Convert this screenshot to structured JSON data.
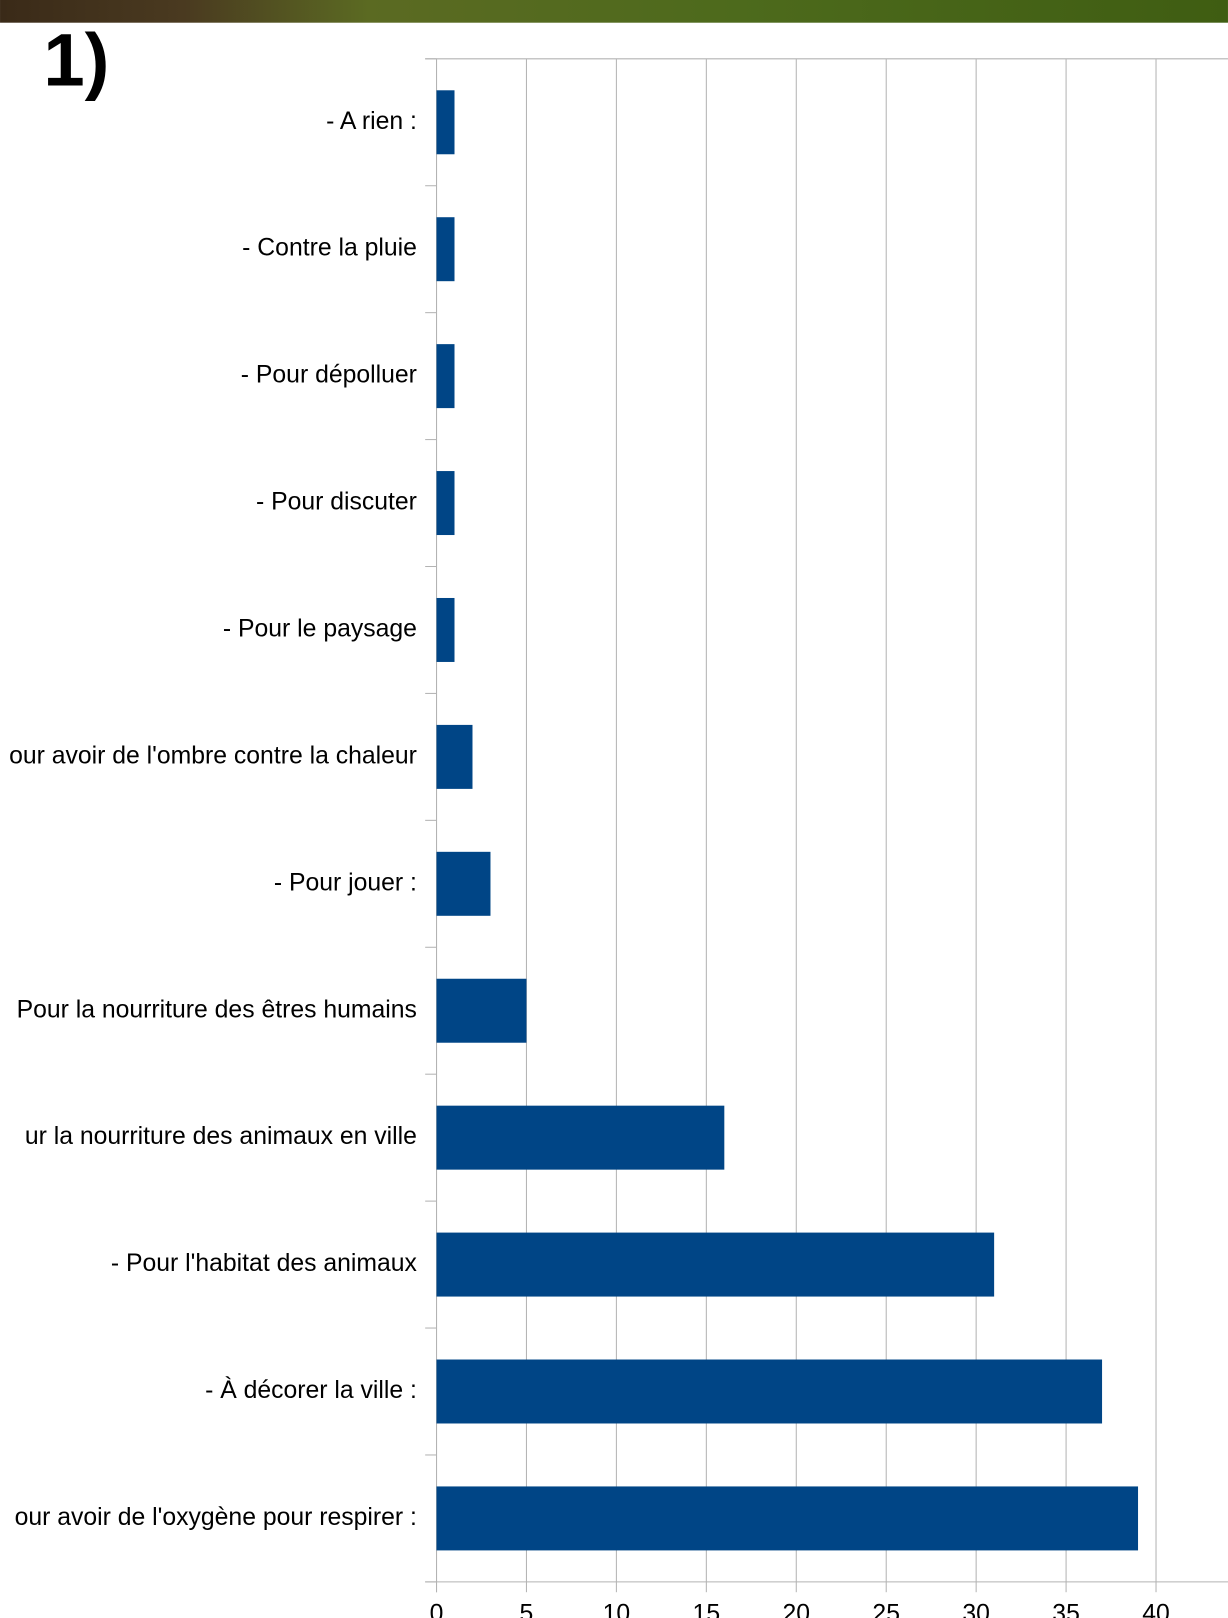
{
  "chart_data": {
    "type": "bar",
    "orientation": "horizontal",
    "title": "1)",
    "categories": [
      "- A rien :",
      "- Contre la pluie",
      "- Pour dépolluer",
      "- Pour discuter",
      "- Pour le paysage",
      "our avoir de l'ombre contre la chaleur",
      "- Pour jouer :",
      "Pour la nourriture des êtres humains",
      "ur la nourriture  des animaux en ville",
      "- Pour l'habitat des animaux",
      "- À décorer la ville :",
      "our avoir de l'oxygène pour respirer :"
    ],
    "values": [
      1,
      1,
      1,
      1,
      1,
      2,
      3,
      5,
      16,
      31,
      37,
      39
    ],
    "color": "#004586",
    "xlim": [
      0,
      44
    ],
    "xticks": [
      0,
      5,
      10,
      15,
      20,
      25,
      30,
      35,
      40
    ],
    "grid": true
  }
}
